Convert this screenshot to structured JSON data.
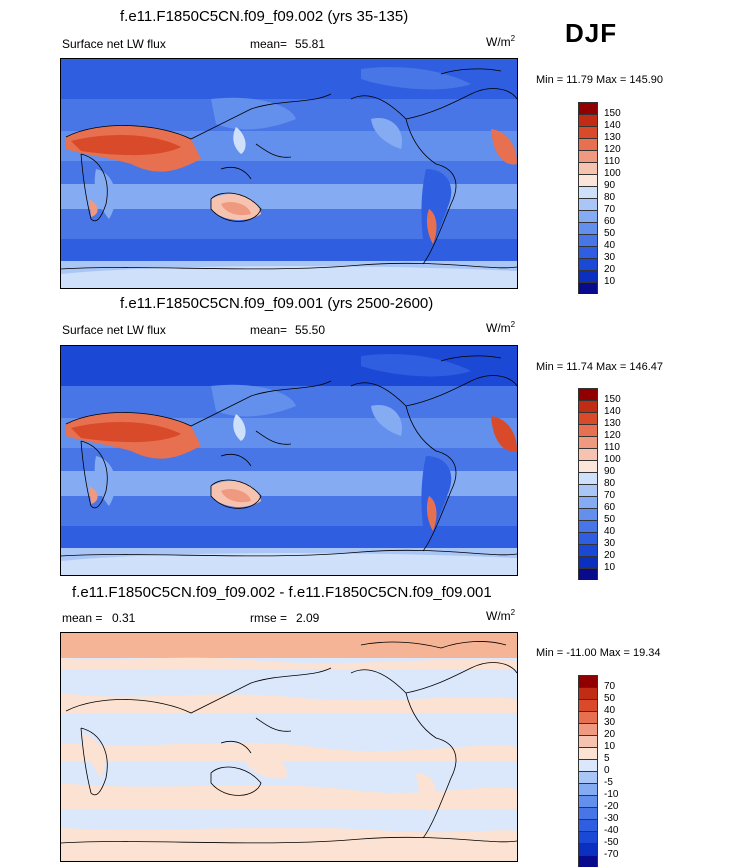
{
  "season": "DJF",
  "panels": [
    {
      "title": "f.e11.F1850C5CN.f09_f09.002 (yrs 35-135)",
      "left_label": "Surface net LW flux",
      "mean_label": "mean=",
      "mean_value": "55.81",
      "units": "W/m",
      "units_sup": "2",
      "minmax": "Min =  11.79 Max = 145.90"
    },
    {
      "title": "f.e11.F1850C5CN.f09_f09.001 (yrs 2500-2600)",
      "left_label": "Surface net LW flux",
      "mean_label": "mean=",
      "mean_value": "55.50",
      "units": "W/m",
      "units_sup": "2",
      "minmax": "Min =  11.74 Max = 146.47"
    },
    {
      "title": "f.e11.F1850C5CN.f09_f09.002 - f.e11.F1850C5CN.f09_f09.001",
      "left_label": "mean =",
      "left_value": "0.31",
      "rmse_label": "rmse =",
      "rmse_value": "2.09",
      "units": "W/m",
      "units_sup": "2",
      "minmax": "Min = -11.00 Max =  19.34"
    }
  ],
  "chart_data": [
    {
      "type": "heatmap",
      "title": "f.e11.F1850C5CN.f09_f09.002 (yrs 35-135)",
      "variable": "Surface net LW flux",
      "units": "W/m2",
      "mean": 55.81,
      "min": 11.79,
      "max": 145.9,
      "colorbar_levels": [
        10,
        20,
        30,
        40,
        50,
        60,
        70,
        80,
        90,
        100,
        110,
        120,
        130,
        140,
        150
      ],
      "colorbar_colors": [
        "#0a0a8c",
        "#0b2fbe",
        "#1c48d6",
        "#2f5fe0",
        "#4876e6",
        "#6390ec",
        "#85abf2",
        "#a9c6f6",
        "#cfe0fa",
        "#fbe6dc",
        "#f6c3b0",
        "#ef9a80",
        "#e6704f",
        "#d94a2a",
        "#c12d14",
        "#900000"
      ]
    },
    {
      "type": "heatmap",
      "title": "f.e11.F1850C5CN.f09_f09.001 (yrs 2500-2600)",
      "variable": "Surface net LW flux",
      "units": "W/m2",
      "mean": 55.5,
      "min": 11.74,
      "max": 146.47,
      "colorbar_levels": [
        10,
        20,
        30,
        40,
        50,
        60,
        70,
        80,
        90,
        100,
        110,
        120,
        130,
        140,
        150
      ],
      "colorbar_colors": [
        "#0a0a8c",
        "#0b2fbe",
        "#1c48d6",
        "#2f5fe0",
        "#4876e6",
        "#6390ec",
        "#85abf2",
        "#a9c6f6",
        "#cfe0fa",
        "#fbe6dc",
        "#f6c3b0",
        "#ef9a80",
        "#e6704f",
        "#d94a2a",
        "#c12d14",
        "#900000"
      ]
    },
    {
      "type": "heatmap",
      "title": "f.e11.F1850C5CN.f09_f09.002 - f.e11.F1850C5CN.f09_f09.001",
      "units": "W/m2",
      "mean": 0.31,
      "rmse": 2.09,
      "min": -11.0,
      "max": 19.34,
      "colorbar_levels": [
        -70,
        -50,
        -40,
        -30,
        -20,
        -10,
        -5,
        0,
        5,
        10,
        20,
        30,
        40,
        50,
        70
      ],
      "colorbar_colors": [
        "#0a0a8c",
        "#0b2fbe",
        "#1c48d6",
        "#2f5fe0",
        "#4876e6",
        "#6390ec",
        "#85abf2",
        "#a9c6f6",
        "#dbe8fb",
        "#fbe2d2",
        "#f6c3b0",
        "#ef9a80",
        "#e6704f",
        "#d94a2a",
        "#c12d14",
        "#900000"
      ]
    }
  ]
}
